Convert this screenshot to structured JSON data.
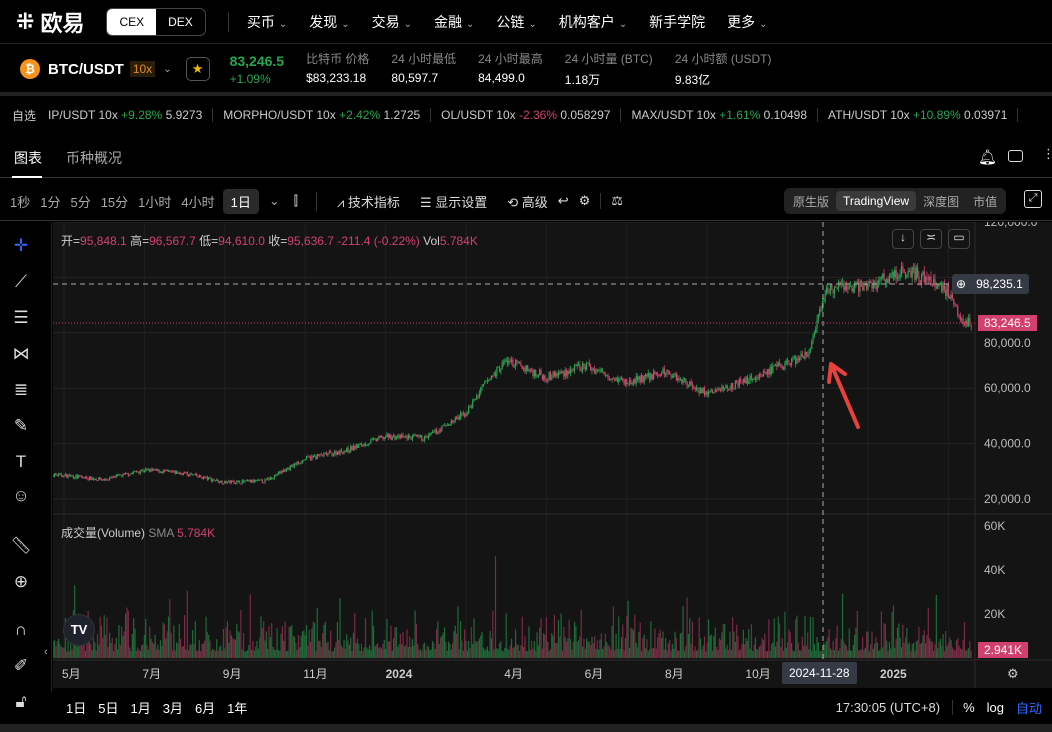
{
  "header": {
    "logo_text": "欧易",
    "cex": "CEX",
    "dex": "DEX",
    "nav": [
      "买币",
      "发现",
      "交易",
      "金融",
      "公链",
      "机构客户",
      "新手学院",
      "更多"
    ],
    "nav_chevrons": [
      true,
      true,
      true,
      true,
      true,
      true,
      false,
      true
    ]
  },
  "ticker": {
    "symbol": "BTC/USDT",
    "leverage": "10x",
    "price": "83,246.5",
    "change": "+1.09%",
    "stats": [
      {
        "label": "比特币 价格",
        "value": "$83,233.18"
      },
      {
        "label": "24 小时最低",
        "value": "80,597.7"
      },
      {
        "label": "24 小时最高",
        "value": "84,499.0"
      },
      {
        "label": "24 小时量 (BTC)",
        "value": "1.18万"
      },
      {
        "label": "24 小时额 (USDT)",
        "value": "9.83亿"
      }
    ]
  },
  "watchlist": {
    "label": "自选",
    "items": [
      {
        "pair": "IP/USDT 10x",
        "chg": "+9.28%",
        "px": "5.9273",
        "up": true
      },
      {
        "pair": "MORPHO/USDT 10x",
        "chg": "+2.42%",
        "px": "1.2725",
        "up": true
      },
      {
        "pair": "OL/USDT 10x",
        "chg": "-2.36%",
        "px": "0.058297",
        "up": false
      },
      {
        "pair": "MAX/USDT 10x",
        "chg": "+1.61%",
        "px": "0.10498",
        "up": true
      },
      {
        "pair": "ATH/USDT 10x",
        "chg": "+10.89%",
        "px": "0.03971",
        "up": true
      }
    ]
  },
  "tabs": [
    "图表",
    "币种概况"
  ],
  "toolbar": {
    "intervals": [
      "1秒",
      "1分",
      "5分",
      "15分",
      "1小时",
      "4小时",
      "1日"
    ],
    "indicators": "技术指标",
    "display": "显示设置",
    "advanced": "高级",
    "views": [
      "原生版",
      "TradingView",
      "深度图",
      "市值"
    ]
  },
  "legend": {
    "o_label": "开=",
    "o": "95,848.1",
    "h_label": "高=",
    "h": "96,567.7",
    "l_label": "低=",
    "l": "94,610.0",
    "c_label": "收=",
    "c": "95,636.7",
    "chg": "-211.4 (-0.22%)",
    "vol_label": "Vol",
    "vol": "5.784K"
  },
  "volume_legend": {
    "name": "成交量(Volume)",
    "sma": "SMA",
    "val": "5.784K"
  },
  "price_axis": [
    "120,000.0",
    "80,000.0",
    "60,000.0",
    "40,000.0",
    "20,000.0"
  ],
  "crosshair_price": "98,235.1",
  "last_price": "83,246.5",
  "volume_axis": [
    "60K",
    "40K",
    "20K"
  ],
  "last_volume": "2.941K",
  "time_axis": [
    "5月",
    "7月",
    "9月",
    "11月",
    "2024",
    "4月",
    "6月",
    "8月",
    "10月",
    "2025"
  ],
  "crosshair_date": "2024-11-28",
  "bottom": {
    "ranges": [
      "1日",
      "5日",
      "1月",
      "3月",
      "6月",
      "1年"
    ],
    "time": "17:30:05 (UTC+8)",
    "pct": "%",
    "log": "log",
    "auto": "自动"
  },
  "colors": {
    "up": "#25a750",
    "down": "#d2416d",
    "auto": "#2f6bff"
  },
  "chart_data": {
    "type": "candlestick",
    "x_unit": "months since 2023-05",
    "price_waypoints": [
      [
        -0.5,
        29000
      ],
      [
        0,
        28500
      ],
      [
        1,
        27000
      ],
      [
        2,
        30500
      ],
      [
        3,
        29200
      ],
      [
        4,
        26000
      ],
      [
        5,
        26500
      ],
      [
        6,
        34500
      ],
      [
        7,
        37500
      ],
      [
        8,
        42500
      ],
      [
        9,
        42000
      ],
      [
        10,
        51000
      ],
      [
        10.5,
        62000
      ],
      [
        11,
        70000
      ],
      [
        12,
        64000
      ],
      [
        13,
        68000
      ],
      [
        14,
        62000
      ],
      [
        15,
        66000
      ],
      [
        16,
        58000
      ],
      [
        17,
        63000
      ],
      [
        18,
        69000
      ],
      [
        18.5,
        72000
      ],
      [
        19,
        96000
      ],
      [
        20,
        97000
      ],
      [
        20.5,
        100000
      ],
      [
        21,
        103000
      ],
      [
        21.5,
        99000
      ],
      [
        22,
        95000
      ],
      [
        22.4,
        84000
      ],
      [
        22.6,
        83246
      ]
    ],
    "ylim": [
      20000,
      120000
    ],
    "volume_ylim": [
      0,
      60000
    ]
  }
}
